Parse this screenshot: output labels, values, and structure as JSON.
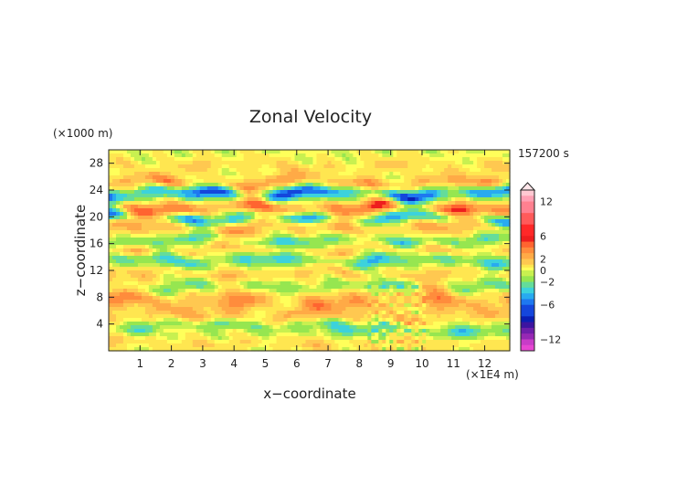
{
  "chart_data": {
    "type": "heatmap",
    "title": "Zonal Velocity",
    "xlabel": "x−coordinate",
    "ylabel": "z−coordinate",
    "x_unit": "(×1E4 m)",
    "y_unit": "(×1000 m)",
    "time_label": "157200 s",
    "xlim": [
      0,
      12.8
    ],
    "ylim": [
      0,
      30
    ],
    "x_ticks": [
      "1",
      "2",
      "3",
      "4",
      "5",
      "6",
      "7",
      "8",
      "9",
      "10",
      "11",
      "12"
    ],
    "y_ticks": [
      "4",
      "8",
      "12",
      "16",
      "20",
      "24",
      "28"
    ],
    "colorbar": {
      "labels": [
        "12",
        "6",
        "2",
        "0",
        "−2",
        "−6",
        "−12"
      ],
      "levels": [
        {
          "v": 14,
          "color": "#ffc8d2"
        },
        {
          "v": 13,
          "color": "#ffa0b4"
        },
        {
          "v": 12,
          "color": "#ff8090"
        },
        {
          "v": 10,
          "color": "#ff5a5a"
        },
        {
          "v": 8,
          "color": "#ff2828"
        },
        {
          "v": 6,
          "color": "#ee1e1e"
        },
        {
          "v": 5,
          "color": "#ff6430"
        },
        {
          "v": 4,
          "color": "#ff8c3c"
        },
        {
          "v": 3,
          "color": "#ffaa46"
        },
        {
          "v": 2,
          "color": "#ffc850"
        },
        {
          "v": 1,
          "color": "#ffe650"
        },
        {
          "v": 0.5,
          "color": "#ffff5a"
        },
        {
          "v": 0,
          "color": "#c8f050"
        },
        {
          "v": -1,
          "color": "#96e650"
        },
        {
          "v": -2,
          "color": "#64dc9a"
        },
        {
          "v": -3,
          "color": "#3cd2dc"
        },
        {
          "v": -4,
          "color": "#28aaf0"
        },
        {
          "v": -5,
          "color": "#1e78f0"
        },
        {
          "v": -6,
          "color": "#1446dc"
        },
        {
          "v": -8,
          "color": "#0a1eb4"
        },
        {
          "v": -9,
          "color": "#3c14a0"
        },
        {
          "v": -10,
          "color": "#6e1eaa"
        },
        {
          "v": -11,
          "color": "#9628b4"
        },
        {
          "v": -12,
          "color": "#c83cc8"
        },
        {
          "v": -13,
          "color": "#e646d2"
        },
        {
          "v": -14,
          "color": "#ff50dc"
        }
      ]
    },
    "bands": [
      {
        "z": 1.0,
        "amp": 1.5,
        "th": 1.0
      },
      {
        "z": 3.0,
        "amp": -2.5,
        "th": 0.9,
        "x0": 7.5,
        "x1": 12.8
      },
      {
        "z": 3.8,
        "amp": -2.0,
        "th": 0.8,
        "x0": 0.0,
        "x1": 7.0
      },
      {
        "z": 5.2,
        "amp": 2.0,
        "th": 1.0
      },
      {
        "z": 7.5,
        "amp": 3.5,
        "th": 1.6
      },
      {
        "z": 9.5,
        "amp": -2.0,
        "th": 0.9
      },
      {
        "z": 11.5,
        "amp": 2.0,
        "th": 1.0
      },
      {
        "z": 13.5,
        "amp": -3.0,
        "th": 1.0
      },
      {
        "z": 15.0,
        "amp": 2.0,
        "th": 0.8
      },
      {
        "z": 16.5,
        "amp": -2.5,
        "th": 0.8
      },
      {
        "z": 18.5,
        "amp": 3.0,
        "th": 1.2
      },
      {
        "z": 19.8,
        "amp": -4.5,
        "th": 0.9
      },
      {
        "z": 21.3,
        "amp": 5.0,
        "th": 1.1
      },
      {
        "z": 23.5,
        "amp": -6.0,
        "th": 1.0
      },
      {
        "z": 25.0,
        "amp": 3.5,
        "th": 1.0
      },
      {
        "z": 27.5,
        "amp": 1.5,
        "th": 1.2
      }
    ]
  }
}
